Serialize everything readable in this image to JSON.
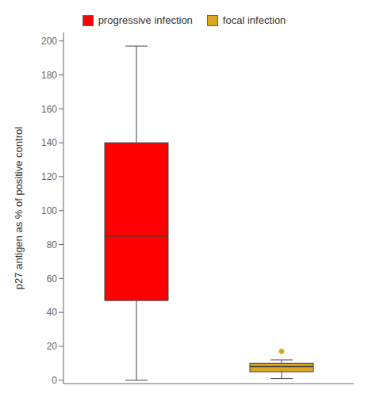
{
  "chart_data": {
    "type": "box",
    "ylabel": "p27 antigen as % of positive control",
    "series": [
      {
        "name": "progressive infection",
        "color": "#FF0000",
        "median": 85,
        "q1": 47,
        "q3": 140,
        "whisker_low": 0,
        "whisker_high": 197
      },
      {
        "name": "focal infection",
        "color": "#DAA520",
        "median": 8,
        "q1": 5,
        "q3": 10,
        "whisker_low": 1,
        "whisker_high": 12,
        "outliers": [
          17
        ]
      }
    ],
    "ylim": [
      -2,
      205
    ],
    "yticks": [
      0,
      20,
      40,
      60,
      80,
      100,
      120,
      140,
      160,
      180,
      200
    ],
    "legend": "top",
    "tick_labels": "y"
  }
}
